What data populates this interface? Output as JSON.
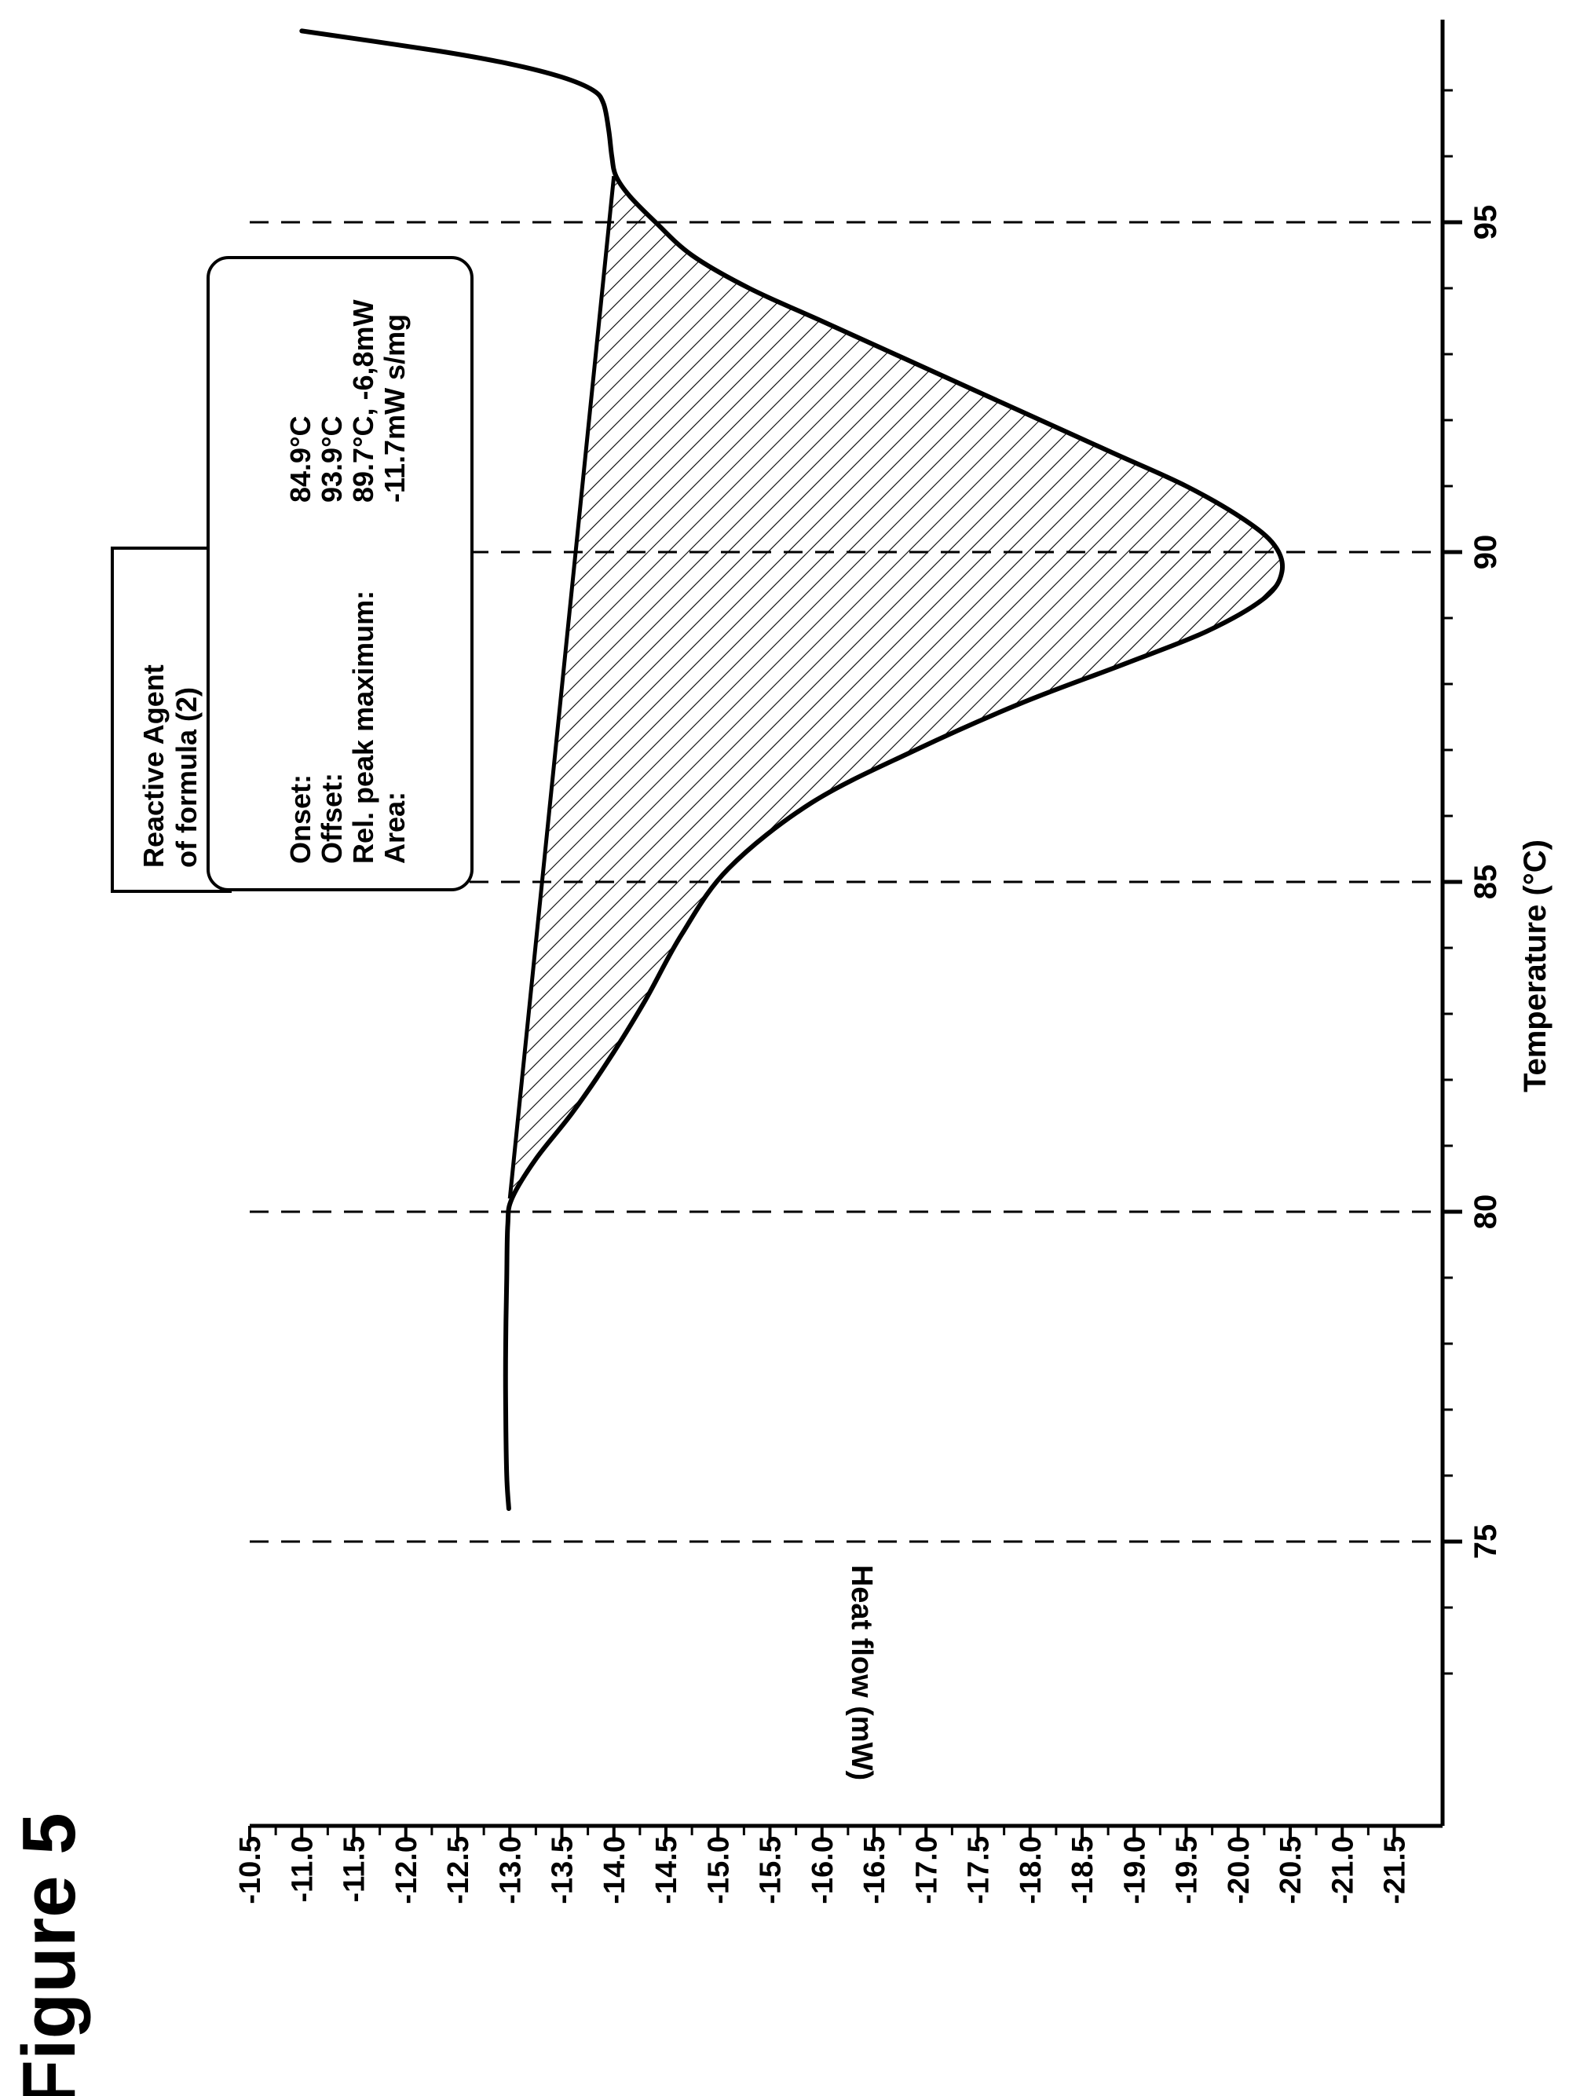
{
  "figure": {
    "title": "Figure 5"
  },
  "chart_data": {
    "type": "line",
    "xlabel": "Temperature (°C)",
    "ylabel": "Heat flow (mW)",
    "xlim": [
      72.2,
      98.1
    ],
    "ylim": [
      -10.5,
      -21.8
    ],
    "x_ticks": [
      "75",
      "80",
      "85",
      "90",
      "95"
    ],
    "x_tick_values": [
      75,
      80,
      85,
      90,
      95
    ],
    "y_ticks": [
      "-10.5",
      "-11.0",
      "-11.5",
      "-12.0",
      "-12.5",
      "-13.0",
      "-13.5",
      "-14.0",
      "-14.5",
      "-15.0",
      "-15.5",
      "-16.0",
      "-16.5",
      "-17.0",
      "-17.5",
      "-18.0",
      "-18.5",
      "-19.0",
      "-19.5",
      "-20.0",
      "-20.5",
      "-21.0",
      "-21.5"
    ],
    "y_tick_values": [
      -10.5,
      -11.0,
      -11.5,
      -12.0,
      -12.5,
      -13.0,
      -13.5,
      -14.0,
      -14.5,
      -15.0,
      -15.5,
      -16.0,
      -16.5,
      -17.0,
      -17.5,
      -18.0,
      -18.5,
      -19.0,
      -19.5,
      -20.0,
      -20.5,
      -21.0,
      -21.5
    ],
    "dashed_gridlines_x": [
      75,
      80,
      85,
      90,
      95
    ],
    "series": [
      {
        "x": [
          75.5,
          76.0,
          77.0,
          78.0,
          79.0,
          79.8,
          80.2,
          80.8,
          81.5,
          82.3,
          83.2,
          84.2,
          85.2,
          86.2,
          87.0,
          87.7,
          88.3,
          88.8,
          89.3,
          89.7,
          90.1,
          90.5,
          91.0,
          91.5,
          92.0,
          92.5,
          93.0,
          93.5,
          94.0,
          94.5,
          95.0,
          95.4,
          95.7,
          96.0,
          96.4,
          96.8,
          97.0,
          97.2,
          97.4,
          97.6,
          97.9
        ],
        "y": [
          -12.99,
          -12.97,
          -12.96,
          -12.96,
          -12.97,
          -12.98,
          -13.02,
          -13.25,
          -13.6,
          -13.95,
          -14.3,
          -14.65,
          -15.1,
          -15.9,
          -16.9,
          -17.9,
          -18.9,
          -19.7,
          -20.25,
          -20.42,
          -20.35,
          -20.05,
          -19.5,
          -18.8,
          -18.1,
          -17.4,
          -16.7,
          -16.0,
          -15.3,
          -14.75,
          -14.4,
          -14.15,
          -14.02,
          -13.98,
          -13.95,
          -13.9,
          -13.8,
          -13.5,
          -13.0,
          -12.3,
          -11.0
        ]
      }
    ],
    "baseline": {
      "x": [
        80.2,
        95.7
      ],
      "y": [
        -13.0,
        -14.0
      ]
    },
    "shaded_peak": {
      "from_x": 80.2,
      "to_x": 95.7,
      "pattern": "diagonal hatch"
    },
    "annotations": {
      "sample_label": [
        "Reactive Agent",
        "of formula (2)"
      ],
      "results_labels": [
        "Onset:",
        "Offset:",
        "Rel. peak maximum:",
        "Area:"
      ],
      "results_values": [
        "84.9°C",
        "93.9°C",
        "89.7°C, -6,8mW",
        "-11.7mW s/mg"
      ]
    },
    "grid": false,
    "legend": "none"
  }
}
